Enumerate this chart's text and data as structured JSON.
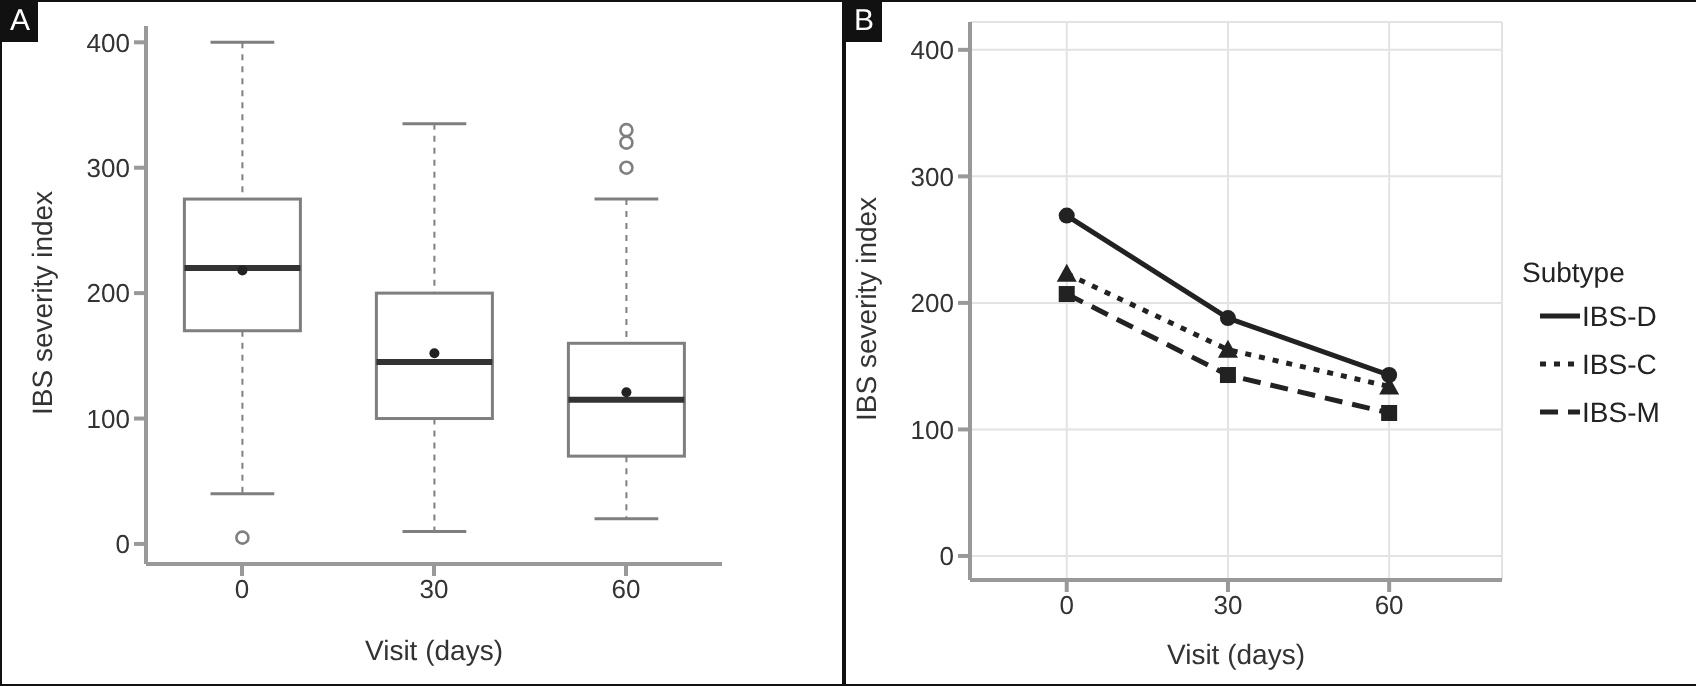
{
  "chart_data": [
    {
      "type": "box",
      "annotations": [
        "A"
      ],
      "xlabel": "Visit (days)",
      "ylabel": "IBS severity index",
      "categories": [
        "0",
        "30",
        "60"
      ],
      "color": "#7f7f7f",
      "ylim": [
        -16,
        413
      ],
      "yticks": [
        0,
        100,
        200,
        300,
        400
      ],
      "grid": false,
      "boxes": [
        {
          "low": 40,
          "q1": 170,
          "median": 220,
          "q3": 275,
          "high": 400,
          "mean": 218,
          "outliers": [
            5
          ]
        },
        {
          "low": 10,
          "q1": 100,
          "median": 145,
          "q3": 200,
          "high": 335,
          "mean": 152
        },
        {
          "low": 20,
          "q1": 70,
          "median": 115,
          "q3": 160,
          "high": 275,
          "mean": 121,
          "outliers": [
            300,
            320,
            330
          ]
        }
      ]
    },
    {
      "type": "line",
      "annotations": [
        "B"
      ],
      "xlabel": "Visit (days)",
      "ylabel": "IBS severity index",
      "legend_title": "Subtype",
      "legend": "right",
      "grid": true,
      "x": [
        0,
        30,
        60
      ],
      "xlim": [
        -18,
        81
      ],
      "xticks": [
        0,
        30,
        60
      ],
      "ylim": [
        -19,
        422
      ],
      "yticks": [
        0,
        100,
        200,
        300,
        400
      ],
      "series": [
        {
          "name": "IBS-D",
          "color": "#222222",
          "marker": "circle",
          "line_style": "solid",
          "values": [
            269,
            188,
            143
          ]
        },
        {
          "name": "IBS-C",
          "color": "#222222",
          "marker": "triangle",
          "line_style": "dotted",
          "values": [
            223,
            163,
            134
          ]
        },
        {
          "name": "IBS-M",
          "color": "#222222",
          "marker": "square",
          "line_style": "dashed",
          "values": [
            207,
            143,
            113
          ]
        }
      ]
    }
  ]
}
